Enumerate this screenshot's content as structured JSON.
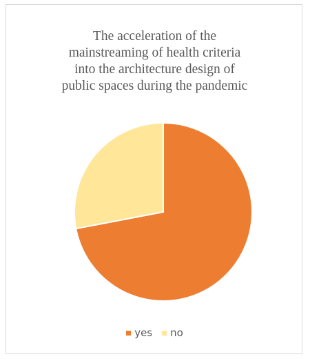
{
  "chart_data": {
    "type": "pie",
    "title_lines": [
      "The acceleration of the",
      "mainstreaming of health criteria",
      "into the architecture design of",
      "public spaces during the pandemic"
    ],
    "categories": [
      "yes",
      "no"
    ],
    "values": [
      72,
      28
    ],
    "colors": [
      "#ED7D31",
      "#FFE699"
    ],
    "start_angle_deg": 0,
    "direction": "clockwise",
    "legend_position": "bottom",
    "slice_border_color": "#ffffff"
  }
}
